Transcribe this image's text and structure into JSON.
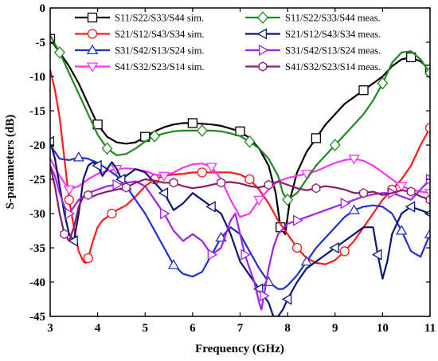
{
  "chart_data": {
    "type": "line",
    "xlabel": "Frequency (GHz)",
    "ylabel": "S-parameters (dB)",
    "xlim": [
      3,
      11
    ],
    "ylim": [
      -45,
      0
    ],
    "xticks": [
      3,
      4,
      5,
      6,
      7,
      8,
      9,
      10,
      11
    ],
    "yticks": [
      0,
      -5,
      -10,
      -15,
      -20,
      -25,
      -30,
      -35,
      -40,
      -45
    ],
    "grid": false,
    "legend_position": "top",
    "series": [
      {
        "name": "S11/S22/S33/S44 sim.",
        "color": "#000000",
        "marker": "square",
        "x": [
          3,
          3.2,
          3.4,
          3.6,
          3.8,
          4.0,
          4.2,
          4.4,
          4.6,
          4.8,
          5.0,
          5.2,
          5.4,
          5.6,
          5.8,
          6.0,
          6.2,
          6.4,
          6.6,
          6.8,
          7.0,
          7.2,
          7.4,
          7.6,
          7.75,
          7.85,
          7.95,
          8.05,
          8.2,
          8.4,
          8.6,
          8.8,
          9.0,
          9.2,
          9.4,
          9.6,
          9.8,
          10.0,
          10.2,
          10.4,
          10.6,
          10.8,
          11.0
        ],
        "y": [
          -4.5,
          -6.5,
          -8.5,
          -11,
          -14,
          -17,
          -18.8,
          -19.6,
          -19.8,
          -19.6,
          -18.8,
          -18,
          -17.4,
          -17,
          -16.8,
          -16.8,
          -16.9,
          -17,
          -17.2,
          -17.6,
          -18,
          -19,
          -20.5,
          -23,
          -27,
          -32,
          -33,
          -28,
          -24,
          -21,
          -19,
          -17,
          -15.5,
          -14,
          -13,
          -12,
          -11,
          -10,
          -8.5,
          -7.5,
          -7.2,
          -7.8,
          -9
        ]
      },
      {
        "name": "S21/S12/S43/S34 sim.",
        "color": "#ff1a1a",
        "marker": "circle",
        "x": [
          3,
          3.1,
          3.2,
          3.3,
          3.4,
          3.5,
          3.6,
          3.7,
          3.75,
          3.8,
          3.9,
          4.0,
          4.1,
          4.2,
          4.3,
          4.4,
          4.6,
          4.8,
          5.0,
          5.2,
          5.4,
          5.6,
          5.8,
          6.0,
          6.2,
          6.4,
          6.6,
          6.8,
          7.0,
          7.2,
          7.4,
          7.6,
          7.8,
          8.0,
          8.2,
          8.4,
          8.6,
          8.8,
          9.0,
          9.2,
          9.4,
          9.6,
          9.8,
          10.0,
          10.2,
          10.4,
          10.6,
          10.8,
          11.0
        ],
        "y": [
          -9,
          -12,
          -16,
          -22,
          -28,
          -32,
          -35.5,
          -37,
          -37.2,
          -36.5,
          -34,
          -32,
          -31,
          -30.5,
          -30,
          -29.5,
          -28.8,
          -27.5,
          -26,
          -25,
          -24.5,
          -24.3,
          -24.2,
          -24,
          -24,
          -24,
          -24,
          -24,
          -24.3,
          -25,
          -26.5,
          -28.5,
          -31,
          -33,
          -35,
          -36.5,
          -37.2,
          -37.4,
          -36.8,
          -35.5,
          -34,
          -32,
          -30,
          -28,
          -26.5,
          -25,
          -23,
          -20,
          -17.5
        ]
      },
      {
        "name": "S31/S42/S13/S24 sim.",
        "color": "#1f2fd0",
        "marker": "triangle-up",
        "x": [
          3,
          3.2,
          3.4,
          3.6,
          3.8,
          4.0,
          4.2,
          4.4,
          4.6,
          4.8,
          5.0,
          5.2,
          5.4,
          5.6,
          5.8,
          6.0,
          6.2,
          6.4,
          6.6,
          6.8,
          7.0,
          7.2,
          7.4,
          7.6,
          7.8,
          7.9,
          8.0,
          8.2,
          8.4,
          8.6,
          8.8,
          9.0,
          9.2,
          9.4,
          9.6,
          9.8,
          10.0,
          10.2,
          10.4,
          10.6,
          10.8,
          11.0
        ],
        "y": [
          -20,
          -22,
          -22.2,
          -21.8,
          -22,
          -22.6,
          -23.5,
          -24.5,
          -26,
          -28,
          -30,
          -32.5,
          -35,
          -37.5,
          -38.8,
          -39.2,
          -38.5,
          -36,
          -33.5,
          -32,
          -33,
          -35.5,
          -38,
          -40,
          -41,
          -41,
          -40.5,
          -39,
          -37,
          -35,
          -33.5,
          -32,
          -30.5,
          -29.5,
          -29,
          -28.8,
          -29,
          -30,
          -32.5,
          -35.5,
          -36.3,
          -33
        ]
      },
      {
        "name": "S41/S32/S23/S14 sim.",
        "color": "#ff33ff",
        "marker": "triangle-down",
        "x": [
          3,
          3.2,
          3.4,
          3.6,
          3.8,
          4.0,
          4.2,
          4.4,
          4.6,
          4.8,
          5.0,
          5.2,
          5.4,
          5.6,
          5.8,
          6.0,
          6.2,
          6.4,
          6.6,
          6.8,
          7.0,
          7.2,
          7.4,
          7.6,
          7.8,
          8.0,
          8.2,
          8.4,
          8.6,
          8.8,
          9.0,
          9.2,
          9.4,
          9.6,
          9.8,
          10.0,
          10.2,
          10.4,
          10.6,
          10.8,
          11.0
        ],
        "y": [
          -22,
          -24.5,
          -26.5,
          -26,
          -25,
          -24.2,
          -23.8,
          -23.5,
          -23.4,
          -23.5,
          -23.8,
          -24.3,
          -24.5,
          -24,
          -23.3,
          -22.8,
          -22.7,
          -23.2,
          -25,
          -28,
          -30.5,
          -30,
          -28,
          -26.5,
          -25.3,
          -24.8,
          -24.5,
          -24.2,
          -23.8,
          -23.2,
          -22.6,
          -22.2,
          -22,
          -22.3,
          -23,
          -24,
          -25,
          -26,
          -26.5,
          -26.8,
          -27
        ]
      },
      {
        "name": "S11/S22/S33/S44 meas.",
        "color": "#1f8a1f",
        "marker": "diamond",
        "x": [
          3,
          3.2,
          3.4,
          3.6,
          3.8,
          4.0,
          4.2,
          4.4,
          4.6,
          4.8,
          5.0,
          5.2,
          5.4,
          5.6,
          5.8,
          6.0,
          6.2,
          6.4,
          6.6,
          6.8,
          7.0,
          7.2,
          7.4,
          7.6,
          7.8,
          7.9,
          8.0,
          8.2,
          8.4,
          8.6,
          8.8,
          9.0,
          9.2,
          9.4,
          9.6,
          9.8,
          10.0,
          10.2,
          10.4,
          10.6,
          10.8,
          11.0
        ],
        "y": [
          -4,
          -6.5,
          -9.5,
          -12.5,
          -15.5,
          -18.5,
          -20.5,
          -21.5,
          -21.3,
          -20.5,
          -19.5,
          -18.7,
          -18.3,
          -18,
          -17.9,
          -17.9,
          -17.9,
          -17.9,
          -18,
          -18.3,
          -18.7,
          -19.5,
          -20.5,
          -22,
          -24.5,
          -27,
          -28,
          -27,
          -25,
          -23,
          -21.5,
          -20,
          -18.5,
          -17,
          -15.5,
          -13.5,
          -11,
          -8,
          -6.5,
          -6.3,
          -7.5,
          -9.5
        ]
      },
      {
        "name": "S21/S12/S43/S34 meas.",
        "color": "#0a1578",
        "marker": "triangle-left",
        "x": [
          3,
          3.1,
          3.2,
          3.3,
          3.4,
          3.5,
          3.6,
          3.7,
          3.8,
          3.9,
          4.0,
          4.1,
          4.2,
          4.3,
          4.4,
          4.5,
          4.6,
          4.8,
          5.0,
          5.2,
          5.4,
          5.6,
          5.8,
          6.0,
          6.2,
          6.4,
          6.6,
          6.8,
          7.0,
          7.2,
          7.4,
          7.6,
          7.7,
          7.8,
          7.9,
          8.0,
          8.2,
          8.4,
          8.6,
          8.8,
          9.0,
          9.2,
          9.4,
          9.6,
          9.8,
          9.9,
          10.0,
          10.1,
          10.2,
          10.4,
          10.6,
          10.8,
          11.0
        ],
        "y": [
          -19.5,
          -22,
          -26,
          -30,
          -33,
          -34,
          -30,
          -25,
          -23,
          -22.5,
          -23,
          -24.5,
          -23.5,
          -22.5,
          -23.5,
          -25,
          -24.5,
          -23.5,
          -24,
          -25.5,
          -27,
          -29.5,
          -28.5,
          -27,
          -28,
          -29,
          -30,
          -33,
          -37,
          -39,
          -41,
          -43,
          -45,
          -45,
          -44,
          -42.5,
          -40,
          -38,
          -37,
          -36,
          -35,
          -34,
          -33,
          -32,
          -32,
          -36,
          -39.5,
          -37,
          -33,
          -30,
          -29,
          -29.5,
          -30
        ]
      },
      {
        "name": "S31/S42/S13/S24 meas.",
        "color": "#a020f0",
        "marker": "triangle-right",
        "x": [
          3,
          3.1,
          3.2,
          3.3,
          3.4,
          3.6,
          3.8,
          4.0,
          4.2,
          4.4,
          4.6,
          4.8,
          5.0,
          5.2,
          5.4,
          5.6,
          5.8,
          6.0,
          6.2,
          6.4,
          6.6,
          6.8,
          6.9,
          7.0,
          7.1,
          7.2,
          7.3,
          7.4,
          7.45,
          7.5,
          7.6,
          7.7,
          7.8,
          8.0,
          8.2,
          8.4,
          8.6,
          8.8,
          9.0,
          9.2,
          9.4,
          9.6,
          9.8,
          10.0,
          10.2,
          10.4,
          10.6,
          10.8,
          11.0
        ],
        "y": [
          -23,
          -24.5,
          -27,
          -29,
          -30,
          -28,
          -27,
          -26.5,
          -26,
          -25.8,
          -25.5,
          -25.3,
          -26,
          -28,
          -30,
          -32.5,
          -34,
          -33,
          -34,
          -36,
          -35,
          -31,
          -30,
          -33,
          -36,
          -38,
          -40,
          -43,
          -44,
          -42,
          -38,
          -35,
          -33,
          -31.5,
          -31,
          -30.5,
          -30,
          -29.5,
          -29,
          -28.5,
          -28,
          -27.5,
          -27.2,
          -27,
          -27,
          -27.5,
          -28,
          -26.5,
          -25
        ]
      },
      {
        "name": "S41/S32/S23/S14 meas.",
        "color": "#8b1a6b",
        "marker": "hexagon",
        "x": [
          3,
          3.1,
          3.2,
          3.3,
          3.4,
          3.5,
          3.6,
          3.7,
          3.8,
          3.9,
          4.0,
          4.2,
          4.4,
          4.6,
          4.8,
          5.0,
          5.2,
          5.4,
          5.6,
          5.8,
          6.0,
          6.2,
          6.4,
          6.6,
          6.8,
          7.0,
          7.2,
          7.4,
          7.6,
          7.8,
          8.0,
          8.2,
          8.4,
          8.6,
          8.8,
          9.0,
          9.2,
          9.4,
          9.6,
          9.8,
          10.0,
          10.2,
          10.4,
          10.6,
          10.8,
          11.0
        ],
        "y": [
          -23,
          -26,
          -30,
          -33,
          -34,
          -32,
          -29,
          -27.5,
          -27.3,
          -27.5,
          -27.2,
          -26.8,
          -26.5,
          -26.2,
          -25.5,
          -25,
          -25.2,
          -25.5,
          -25.5,
          -26,
          -26.3,
          -26.1,
          -25.8,
          -25.5,
          -25.4,
          -25.6,
          -26,
          -26.2,
          -25.8,
          -25.3,
          -25.8,
          -26.3,
          -26.6,
          -26.3,
          -26,
          -26.2,
          -26.5,
          -27,
          -27,
          -26.8,
          -27.3,
          -27,
          -26.6,
          -26.8,
          -27.5,
          -28
        ]
      }
    ]
  }
}
